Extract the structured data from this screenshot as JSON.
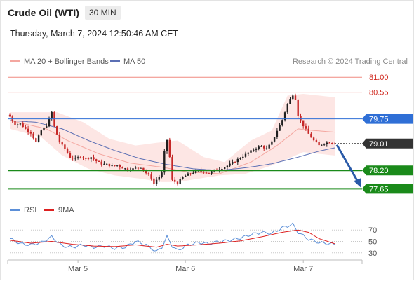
{
  "header": {
    "instrument": "Crude Oil (WTI)",
    "timeframe": "30 MIN",
    "datetime": "Thursday, March 7, 2024 12:50:46 AM CET"
  },
  "legend": {
    "ma20_label": "MA 20 + Bollinger Bands",
    "ma50_label": "MA 50",
    "copyright": "Research © 2024 Trading Central",
    "rsi_label": "RSI",
    "ma9_label": "9MA"
  },
  "colors": {
    "ma20": "#f4a7a0",
    "bollinger_fill": "#fde3e1",
    "ma50": "#5b6fb4",
    "resistance": "#f08a80",
    "pivot": "#2f6fd6",
    "support": "#1a8a1a",
    "last_price": "#333333",
    "arrow": "#2a5aa8",
    "rsi": "#5b8fd8",
    "rsi_ma": "#dd2020",
    "candle_up": "#1f1f1f",
    "candle_down": "#c62828"
  },
  "chart_data": [
    {
      "type": "candlestick",
      "title": "Crude Oil (WTI)",
      "timeframe": "30 MIN",
      "ylim": [
        77.3,
        81.3
      ],
      "x_ticks": [
        "Mar 5",
        "Mar 6",
        "Mar 7"
      ],
      "levels": [
        {
          "value": 81.0,
          "label": "81.00",
          "kind": "resistance"
        },
        {
          "value": 80.55,
          "label": "80.55",
          "kind": "resistance"
        },
        {
          "value": 79.75,
          "label": "79.75",
          "kind": "pivot"
        },
        {
          "value": 79.01,
          "label": "79.01",
          "kind": "last"
        },
        {
          "value": 78.2,
          "label": "78.20",
          "kind": "support"
        },
        {
          "value": 77.65,
          "label": "77.65",
          "kind": "support"
        }
      ],
      "forecast_arrow": {
        "from": 79.01,
        "to": 77.65
      },
      "close_path": [
        [
          0,
          79.82
        ],
        [
          2,
          79.58
        ],
        [
          4,
          79.6
        ],
        [
          6,
          79.45
        ],
        [
          8,
          79.33
        ],
        [
          10,
          79.05
        ],
        [
          12,
          79.4
        ],
        [
          14,
          79.55
        ],
        [
          16,
          79.95
        ],
        [
          17,
          79.52
        ],
        [
          19,
          79.05
        ],
        [
          21,
          78.85
        ],
        [
          23,
          78.6
        ],
        [
          25,
          78.55
        ],
        [
          27,
          78.62
        ],
        [
          29,
          78.55
        ],
        [
          31,
          78.6
        ],
        [
          33,
          78.48
        ],
        [
          35,
          78.4
        ],
        [
          37,
          78.38
        ],
        [
          39,
          78.33
        ],
        [
          41,
          78.36
        ],
        [
          43,
          78.28
        ],
        [
          45,
          78.23
        ],
        [
          47,
          78.25
        ],
        [
          49,
          78.28
        ],
        [
          50,
          78.3
        ],
        [
          52,
          78.12
        ],
        [
          54,
          77.98
        ],
        [
          55,
          77.8
        ],
        [
          56,
          77.92
        ],
        [
          58,
          78.12
        ],
        [
          59,
          78.75
        ],
        [
          60,
          79.12
        ],
        [
          61,
          78.6
        ],
        [
          62,
          77.9
        ],
        [
          64,
          77.82
        ],
        [
          66,
          78.0
        ],
        [
          68,
          78.08
        ],
        [
          70,
          78.14
        ],
        [
          72,
          78.18
        ],
        [
          74,
          78.16
        ],
        [
          76,
          78.12
        ],
        [
          78,
          78.2
        ],
        [
          80,
          78.25
        ],
        [
          82,
          78.3
        ],
        [
          84,
          78.38
        ],
        [
          86,
          78.48
        ],
        [
          88,
          78.58
        ],
        [
          90,
          78.68
        ],
        [
          92,
          78.78
        ],
        [
          94,
          78.88
        ],
        [
          96,
          78.92
        ],
        [
          98,
          78.85
        ],
        [
          100,
          79.05
        ],
        [
          102,
          79.4
        ],
        [
          104,
          79.72
        ],
        [
          106,
          80.2
        ],
        [
          108,
          80.48
        ],
        [
          109,
          80.35
        ],
        [
          110,
          79.85
        ],
        [
          112,
          79.55
        ],
        [
          114,
          79.3
        ],
        [
          116,
          79.1
        ],
        [
          118,
          78.95
        ],
        [
          120,
          79.02
        ],
        [
          122,
          79.05
        ],
        [
          124,
          79.01
        ]
      ],
      "ma20_path": [
        [
          0,
          79.7
        ],
        [
          14,
          79.45
        ],
        [
          22,
          79.1
        ],
        [
          34,
          78.7
        ],
        [
          46,
          78.42
        ],
        [
          58,
          78.3
        ],
        [
          68,
          78.15
        ],
        [
          80,
          78.1
        ],
        [
          92,
          78.45
        ],
        [
          102,
          78.95
        ],
        [
          110,
          79.45
        ],
        [
          116,
          79.4
        ],
        [
          124,
          79.35
        ]
      ],
      "bollinger_upper": [
        [
          0,
          79.95
        ],
        [
          12,
          79.95
        ],
        [
          18,
          79.95
        ],
        [
          28,
          79.65
        ],
        [
          38,
          79.15
        ],
        [
          48,
          78.95
        ],
        [
          58,
          79.05
        ],
        [
          64,
          79.1
        ],
        [
          74,
          78.6
        ],
        [
          82,
          78.45
        ],
        [
          92,
          79.1
        ],
        [
          100,
          79.4
        ],
        [
          106,
          80.45
        ],
        [
          112,
          80.5
        ],
        [
          118,
          80.45
        ],
        [
          124,
          80.4
        ]
      ],
      "bollinger_lower": [
        [
          0,
          79.45
        ],
        [
          12,
          79.2
        ],
        [
          20,
          78.65
        ],
        [
          30,
          78.25
        ],
        [
          40,
          78.05
        ],
        [
          50,
          77.95
        ],
        [
          58,
          77.85
        ],
        [
          64,
          77.85
        ],
        [
          72,
          77.95
        ],
        [
          80,
          78.05
        ],
        [
          90,
          78.1
        ],
        [
          100,
          78.35
        ],
        [
          106,
          78.55
        ],
        [
          112,
          78.75
        ],
        [
          118,
          78.7
        ],
        [
          124,
          78.65
        ]
      ],
      "ma50_path": [
        [
          0,
          79.7
        ],
        [
          10,
          79.65
        ],
        [
          20,
          79.45
        ],
        [
          30,
          79.1
        ],
        [
          40,
          78.8
        ],
        [
          50,
          78.55
        ],
        [
          60,
          78.38
        ],
        [
          70,
          78.25
        ],
        [
          80,
          78.2
        ],
        [
          90,
          78.28
        ],
        [
          100,
          78.4
        ],
        [
          110,
          78.6
        ],
        [
          118,
          78.78
        ],
        [
          124,
          78.88
        ]
      ],
      "n_bars": 125
    },
    {
      "type": "line",
      "title": "RSI",
      "ylim": [
        20,
        85
      ],
      "y_ticks": [
        70,
        50,
        30
      ],
      "series": [
        {
          "name": "RSI",
          "points": [
            [
              0,
              55
            ],
            [
              4,
              46
            ],
            [
              8,
              44
            ],
            [
              12,
              48
            ],
            [
              16,
              58
            ],
            [
              20,
              42
            ],
            [
              24,
              40
            ],
            [
              28,
              44
            ],
            [
              32,
              40
            ],
            [
              36,
              42
            ],
            [
              40,
              38
            ],
            [
              44,
              40
            ],
            [
              48,
              50
            ],
            [
              52,
              44
            ],
            [
              56,
              32
            ],
            [
              58,
              40
            ],
            [
              60,
              58
            ],
            [
              62,
              42
            ],
            [
              64,
              34
            ],
            [
              68,
              44
            ],
            [
              72,
              48
            ],
            [
              76,
              46
            ],
            [
              80,
              50
            ],
            [
              84,
              52
            ],
            [
              88,
              56
            ],
            [
              92,
              62
            ],
            [
              96,
              66
            ],
            [
              100,
              64
            ],
            [
              104,
              74
            ],
            [
              108,
              80
            ],
            [
              110,
              66
            ],
            [
              114,
              54
            ],
            [
              118,
              48
            ],
            [
              122,
              46
            ],
            [
              124,
              45
            ]
          ]
        },
        {
          "name": "9MA",
          "points": [
            [
              0,
              52
            ],
            [
              8,
              47
            ],
            [
              16,
              50
            ],
            [
              24,
              45
            ],
            [
              32,
              42
            ],
            [
              40,
              41
            ],
            [
              48,
              44
            ],
            [
              56,
              40
            ],
            [
              60,
              45
            ],
            [
              64,
              42
            ],
            [
              72,
              44
            ],
            [
              80,
              47
            ],
            [
              88,
              51
            ],
            [
              96,
              58
            ],
            [
              104,
              66
            ],
            [
              110,
              70
            ],
            [
              114,
              66
            ],
            [
              118,
              55
            ],
            [
              124,
              46
            ]
          ]
        }
      ]
    }
  ]
}
